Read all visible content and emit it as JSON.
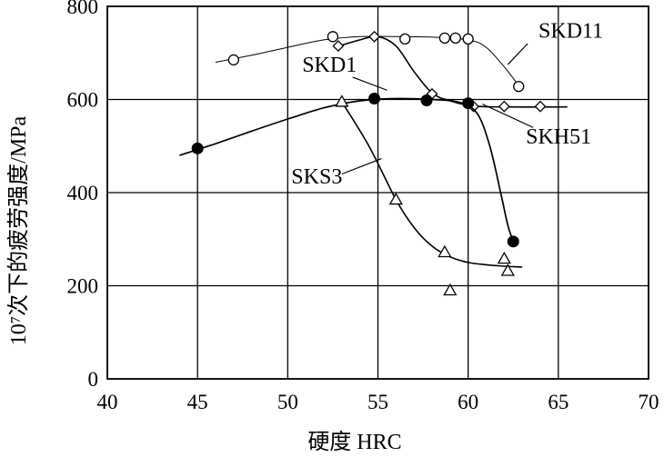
{
  "chart_data": {
    "type": "line",
    "xlabel": "硬度  HRC",
    "ylabel": "10⁷次下的疲劳强度/MPa",
    "xlim": [
      40,
      70
    ],
    "ylim": [
      0,
      800
    ],
    "x_ticks": [
      40,
      45,
      50,
      55,
      60,
      65,
      70
    ],
    "y_ticks": [
      0,
      200,
      400,
      600,
      800
    ],
    "grid": true,
    "series": [
      {
        "name": "SKD11",
        "marker": "open-circle",
        "points": [
          [
            47,
            685
          ],
          [
            52.5,
            735
          ],
          [
            56.5,
            730
          ],
          [
            58.7,
            732
          ],
          [
            59.3,
            732
          ],
          [
            60,
            730
          ],
          [
            62.8,
            628
          ]
        ],
        "curve": [
          [
            46,
            680
          ],
          [
            48,
            695
          ],
          [
            50,
            712
          ],
          [
            52,
            728
          ],
          [
            54,
            735
          ],
          [
            56,
            735
          ],
          [
            58,
            734
          ],
          [
            60,
            728
          ],
          [
            61,
            712
          ],
          [
            62,
            670
          ],
          [
            62.8,
            630
          ]
        ]
      },
      {
        "name": "SKD1",
        "marker": "open-diamond",
        "points": [
          [
            52.8,
            715
          ],
          [
            54.8,
            735
          ],
          [
            58,
            612
          ],
          [
            60.3,
            585
          ],
          [
            62,
            585
          ],
          [
            64,
            585
          ]
        ],
        "curve": [
          [
            52.6,
            712
          ],
          [
            54,
            728
          ],
          [
            55,
            735
          ],
          [
            56,
            715
          ],
          [
            57,
            660
          ],
          [
            58,
            614
          ],
          [
            59,
            597
          ],
          [
            60.3,
            586
          ],
          [
            62,
            584
          ],
          [
            65.5,
            584
          ]
        ]
      },
      {
        "name": "SKH51",
        "marker": "filled-circle",
        "points": [
          [
            45,
            495
          ],
          [
            54.8,
            602
          ],
          [
            57.7,
            598
          ],
          [
            60,
            592
          ],
          [
            62.5,
            295
          ]
        ],
        "curve": [
          [
            44,
            480
          ],
          [
            46,
            505
          ],
          [
            48,
            532
          ],
          [
            50,
            558
          ],
          [
            52,
            582
          ],
          [
            54,
            597
          ],
          [
            56,
            602
          ],
          [
            58,
            600
          ],
          [
            59.5,
            594
          ],
          [
            60.5,
            570
          ],
          [
            61.2,
            500
          ],
          [
            61.8,
            400
          ],
          [
            62.2,
            330
          ],
          [
            62.5,
            295
          ]
        ]
      },
      {
        "name": "SKS3",
        "marker": "open-triangle",
        "points": [
          [
            53,
            595
          ],
          [
            56,
            385
          ],
          [
            58.7,
            272
          ],
          [
            59,
            190
          ],
          [
            62,
            258
          ],
          [
            62.2,
            232
          ]
        ],
        "curve": [
          [
            53,
            595
          ],
          [
            54.5,
            500
          ],
          [
            56,
            385
          ],
          [
            57,
            325
          ],
          [
            58,
            285
          ],
          [
            59,
            262
          ],
          [
            60,
            250
          ],
          [
            61,
            245
          ],
          [
            62,
            242
          ],
          [
            63,
            240
          ]
        ]
      }
    ],
    "series_labels": [
      {
        "text": "SKD11",
        "x": 63.9,
        "y": 733,
        "leader_to": [
          62.2,
          675
        ],
        "leader_from": [
          63.3,
          720
        ]
      },
      {
        "text": "SKD1",
        "x": 50.8,
        "y": 660,
        "leader_from": [
          53.6,
          648
        ],
        "leader_to": [
          55.5,
          620
        ]
      },
      {
        "text": "SKH51",
        "x": 63.2,
        "y": 505,
        "leader_from": [
          63.6,
          540
        ],
        "leader_to": [
          60.8,
          590
        ]
      },
      {
        "text": "SKS3",
        "x": 50.2,
        "y": 420,
        "leader_from": [
          53.0,
          440
        ],
        "leader_to": [
          55.2,
          473
        ]
      }
    ]
  }
}
